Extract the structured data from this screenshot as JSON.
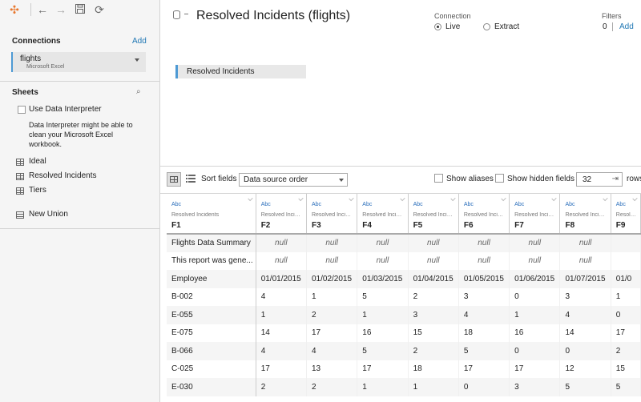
{
  "toolbar": {
    "icons": [
      "tableau-logo-icon",
      "back-icon",
      "forward-icon",
      "save-icon",
      "refresh-icon"
    ]
  },
  "connections": {
    "title": "Connections",
    "add_label": "Add",
    "item": {
      "name": "flights",
      "type": "Microsoft Excel"
    }
  },
  "sheets": {
    "title": "Sheets",
    "interpreter_label": "Use Data Interpreter",
    "interpreter_desc": "Data Interpreter might be able to clean your Microsoft Excel workbook.",
    "items": [
      {
        "label": "Ideal"
      },
      {
        "label": "Resolved Incidents"
      },
      {
        "label": "Tiers"
      }
    ],
    "union_label": "New Union"
  },
  "datasource": {
    "title": "Resolved Incidents (flights)",
    "canvas_table": "Resolved Incidents"
  },
  "connection_mode": {
    "label": "Connection",
    "live": "Live",
    "extract": "Extract",
    "selected": "live"
  },
  "filters": {
    "label": "Filters",
    "count": "0",
    "add": "Add"
  },
  "grid_toolbar": {
    "sort_label": "Sort fields",
    "sort_value": "Data source order",
    "show_aliases": "Show aliases",
    "show_hidden": "Show hidden fields",
    "rows_value": "32",
    "rows_label": "rows"
  },
  "grid": {
    "columns": [
      {
        "type": "Abc",
        "source": "Resolved Incidents",
        "name": "F1"
      },
      {
        "type": "Abc",
        "source": "Resolved Incide...",
        "name": "F2"
      },
      {
        "type": "Abc",
        "source": "Resolved Incide...",
        "name": "F3"
      },
      {
        "type": "Abc",
        "source": "Resolved Incide...",
        "name": "F4"
      },
      {
        "type": "Abc",
        "source": "Resolved Incide...",
        "name": "F5"
      },
      {
        "type": "Abc",
        "source": "Resolved Incide...",
        "name": "F6"
      },
      {
        "type": "Abc",
        "source": "Resolved Incide...",
        "name": "F7"
      },
      {
        "type": "Abc",
        "source": "Resolved Incide...",
        "name": "F8"
      },
      {
        "type": "Abc",
        "source": "Resolved Incide...",
        "name": "F9"
      }
    ],
    "rows": [
      [
        "Flights Data Summary",
        "null",
        "null",
        "null",
        "null",
        "null",
        "null",
        "null",
        ""
      ],
      [
        "This report was gene...",
        "null",
        "null",
        "null",
        "null",
        "null",
        "null",
        "null",
        ""
      ],
      [
        "Employee",
        "01/01/2015",
        "01/02/2015",
        "01/03/2015",
        "01/04/2015",
        "01/05/2015",
        "01/06/2015",
        "01/07/2015",
        "01/0"
      ],
      [
        "B-002",
        "4",
        "1",
        "5",
        "2",
        "3",
        "0",
        "3",
        "1"
      ],
      [
        "E-055",
        "1",
        "2",
        "1",
        "3",
        "4",
        "1",
        "4",
        "0"
      ],
      [
        "E-075",
        "14",
        "17",
        "16",
        "15",
        "18",
        "16",
        "14",
        "17"
      ],
      [
        "B-066",
        "4",
        "4",
        "5",
        "2",
        "5",
        "0",
        "0",
        "2"
      ],
      [
        "C-025",
        "17",
        "13",
        "17",
        "18",
        "17",
        "17",
        "12",
        "15"
      ],
      [
        "E-030",
        "2",
        "2",
        "1",
        "1",
        "0",
        "3",
        "5",
        "5"
      ]
    ]
  }
}
